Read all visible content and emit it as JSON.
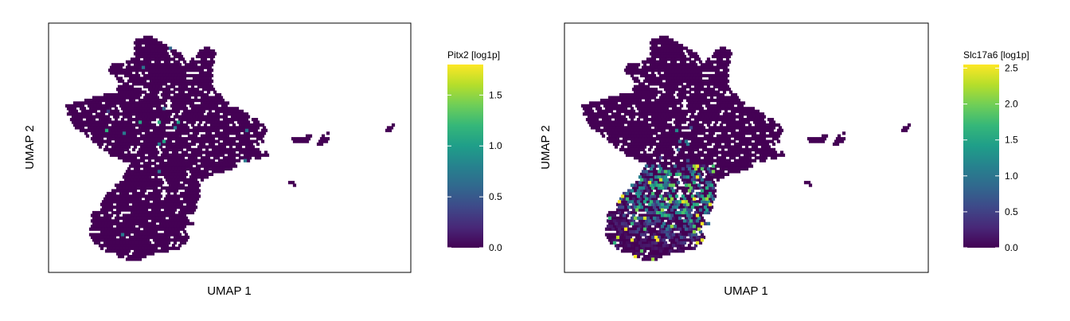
{
  "chart_data": [
    {
      "type": "scatter",
      "subtype": "umap-hexbin",
      "xlabel": "UMAP 1",
      "ylabel": "UMAP 2",
      "color_label": "Pitx2 [log1p]",
      "color_range": [
        0,
        1.8
      ],
      "color_ticks": [
        "0.0",
        "0.5",
        "1.0",
        "1.5"
      ],
      "colormap": "viridis",
      "axis_ticks_shown": false,
      "grid": false,
      "note": "Nearly all cells at 0.0; a few isolated cells with low-to-moderate expression near the center of the embedding."
    },
    {
      "type": "scatter",
      "subtype": "umap-hexbin",
      "xlabel": "UMAP 1",
      "ylabel": "UMAP 2",
      "color_label": "Slc17a6 [log1p]",
      "color_range": [
        0,
        2.55
      ],
      "color_ticks": [
        "0.0",
        "0.5",
        "1.0",
        "1.5",
        "2.0",
        "2.5"
      ],
      "colormap": "viridis",
      "axis_ticks_shown": false,
      "grid": false,
      "note": "Expression concentrated in the lower-left lobe of the embedding (values ~0.5–2.5); rest of embedding at 0.0."
    }
  ],
  "viridis": [
    "#440154",
    "#482878",
    "#3e4989",
    "#31688e",
    "#26828e",
    "#1f9e89",
    "#35b779",
    "#6ece58",
    "#b5de2b",
    "#fde725"
  ]
}
